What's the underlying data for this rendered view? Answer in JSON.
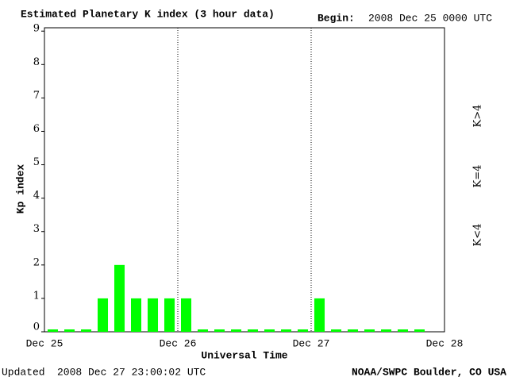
{
  "chart_data": {
    "type": "bar",
    "title": "Estimated Planetary K index (3 hour data)",
    "begin_label": "Begin:",
    "begin": "2008 Dec 25 0000 UTC",
    "ylabel": "Kp index",
    "xlabel": "Universal Time",
    "updated_label": "Updated",
    "updated": "2008 Dec 27 23:00:02 UTC",
    "source": "NOAA/SWPC Boulder, CO USA",
    "x": [
      0,
      3,
      6,
      9,
      12,
      15,
      18,
      21,
      24,
      27,
      30,
      33,
      36,
      39,
      42,
      45,
      48,
      51,
      54,
      57,
      60,
      63,
      66
    ],
    "values": [
      0,
      0,
      0,
      1,
      2,
      1,
      1,
      1,
      1,
      0,
      0,
      0,
      0,
      0,
      0,
      0,
      1,
      0,
      0,
      0,
      0,
      0,
      0
    ],
    "color": "#00ff00",
    "xlim": [
      0,
      72
    ],
    "xticks": [
      {
        "value": 0,
        "label": "Dec 25"
      },
      {
        "value": 24,
        "label": "Dec 26"
      },
      {
        "value": 48,
        "label": "Dec 27"
      },
      {
        "value": 72,
        "label": "Dec 28"
      }
    ],
    "ylim": [
      0,
      9.1
    ],
    "yticks": [
      0,
      1,
      2,
      3,
      4,
      5,
      6,
      7,
      8,
      9
    ],
    "grid": true,
    "legend": [
      {
        "name": "K<4",
        "color": "#00ff00"
      },
      {
        "name": "K=4",
        "color": "#ffd700"
      },
      {
        "name": "K>4",
        "color": "#ff2000"
      }
    ]
  }
}
